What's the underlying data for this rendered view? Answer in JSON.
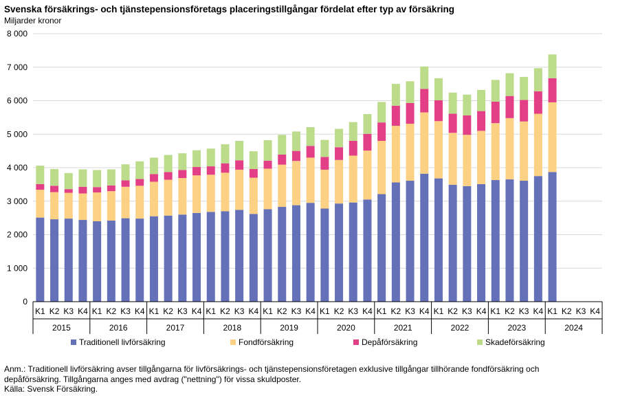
{
  "chart_data": {
    "type": "bar",
    "stacked": true,
    "title": "Svenska försäkrings- och tjänstepensionsföretags placeringstillgångar fördelat efter typ av försäkring",
    "ylabel": "Miljarder kronor",
    "ylim": [
      0,
      8000
    ],
    "yticks": [
      0,
      1000,
      2000,
      3000,
      4000,
      5000,
      6000,
      7000,
      8000
    ],
    "ytick_labels": [
      "0",
      "1 000",
      "2 000",
      "3 000",
      "4 000",
      "5 000",
      "6 000",
      "7 000",
      "8 000"
    ],
    "years": [
      "2015",
      "2016",
      "2017",
      "2018",
      "2019",
      "2020",
      "2021",
      "2022",
      "2023",
      "2024"
    ],
    "quarter_labels": [
      "K1",
      "K2",
      "K3",
      "K4"
    ],
    "categories": [
      "2015 K1",
      "2015 K2",
      "2015 K3",
      "2015 K4",
      "2016 K1",
      "2016 K2",
      "2016 K3",
      "2016 K4",
      "2017 K1",
      "2017 K2",
      "2017 K3",
      "2017 K4",
      "2018 K1",
      "2018 K2",
      "2018 K3",
      "2018 K4",
      "2019 K1",
      "2019 K2",
      "2019 K3",
      "2019 K4",
      "2020 K1",
      "2020 K2",
      "2020 K3",
      "2020 K4",
      "2021 K1",
      "2021 K2",
      "2021 K3",
      "2021 K4",
      "2022 K1",
      "2022 K2",
      "2022 K3",
      "2022 K4",
      "2023 K1",
      "2023 K2",
      "2023 K3",
      "2023 K4",
      "2024 K1",
      "2024 K2",
      "2024 K3",
      "2024 K4"
    ],
    "series": [
      {
        "name": "Traditionell livförsäkring",
        "color": "#6470b8",
        "values": [
          2510,
          2460,
          2480,
          2440,
          2400,
          2420,
          2490,
          2480,
          2550,
          2570,
          2600,
          2650,
          2680,
          2700,
          2740,
          2620,
          2760,
          2830,
          2880,
          2950,
          2780,
          2930,
          2960,
          3050,
          3210,
          3560,
          3610,
          3820,
          3680,
          3490,
          3450,
          3510,
          3630,
          3650,
          3610,
          3750,
          3870,
          null,
          null,
          null
        ]
      },
      {
        "name": "Fondförsäkring",
        "color": "#fcd184",
        "values": [
          830,
          810,
          770,
          790,
          860,
          880,
          940,
          980,
          1030,
          1070,
          1090,
          1120,
          1110,
          1150,
          1200,
          1080,
          1210,
          1260,
          1320,
          1350,
          1160,
          1300,
          1400,
          1460,
          1590,
          1690,
          1700,
          1830,
          1710,
          1550,
          1530,
          1590,
          1700,
          1830,
          1770,
          1860,
          2080,
          null,
          null,
          null
        ]
      },
      {
        "name": "Depåförsäkring",
        "color": "#e23f87",
        "values": [
          170,
          190,
          110,
          200,
          160,
          170,
          190,
          200,
          230,
          230,
          240,
          250,
          250,
          280,
          280,
          260,
          240,
          300,
          300,
          350,
          380,
          380,
          440,
          500,
          550,
          600,
          620,
          700,
          620,
          570,
          580,
          590,
          640,
          660,
          640,
          670,
          720,
          null,
          null,
          null
        ]
      },
      {
        "name": "Skadeförsäkring",
        "color": "#bcdc8c",
        "values": [
          550,
          500,
          480,
          520,
          510,
          480,
          480,
          530,
          490,
          510,
          500,
          500,
          530,
          570,
          580,
          530,
          610,
          590,
          580,
          560,
          510,
          550,
          560,
          590,
          610,
          650,
          650,
          670,
          660,
          630,
          620,
          630,
          650,
          680,
          690,
          690,
          710,
          null,
          null,
          null
        ]
      }
    ],
    "legend_position": "bottom",
    "grid": true,
    "notes": [
      "Anm.: Traditionell livförsäkring avser tillgångarna för livförsäkrings- och tjänstepensionsföretagen exklusive tillgångar tillhörande fondförsäkring och",
      "depåförsäkring. Tillgångarna anges med avdrag (\"nettning\") för vissa skuldposter.",
      "Källa: Svensk Försäkring."
    ]
  }
}
